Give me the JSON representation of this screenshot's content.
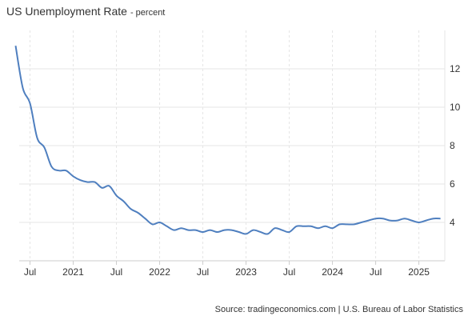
{
  "header": {
    "title": "US Unemployment Rate",
    "subtitle": "- percent"
  },
  "source": "Source: tradingeconomics.com | U.S. Bureau of Labor Statistics",
  "colors": {
    "line": "#4f7fbf",
    "grid": "#e5e5e5",
    "text": "#333333"
  },
  "chart_data": {
    "type": "line",
    "title": "US Unemployment Rate",
    "subtitle": "percent",
    "xlabel": "",
    "ylabel": "",
    "ylim": [
      2,
      14
    ],
    "grid": true,
    "y_ticks": [
      4,
      6,
      8,
      10,
      12
    ],
    "y_axis_position": "right",
    "x_ticks": [
      {
        "label": "Jul",
        "date": "2020-07"
      },
      {
        "label": "2021",
        "date": "2021-01"
      },
      {
        "label": "Jul",
        "date": "2021-07"
      },
      {
        "label": "2022",
        "date": "2022-01"
      },
      {
        "label": "Jul",
        "date": "2022-07"
      },
      {
        "label": "2023",
        "date": "2023-01"
      },
      {
        "label": "Jul",
        "date": "2023-07"
      },
      {
        "label": "2024",
        "date": "2024-01"
      },
      {
        "label": "Jul",
        "date": "2024-07"
      },
      {
        "label": "2025",
        "date": "2025-01"
      }
    ],
    "series": [
      {
        "name": "",
        "x": [
          "2020-05",
          "2020-06",
          "2020-07",
          "2020-08",
          "2020-09",
          "2020-10",
          "2020-11",
          "2020-12",
          "2021-01",
          "2021-02",
          "2021-03",
          "2021-04",
          "2021-05",
          "2021-06",
          "2021-07",
          "2021-08",
          "2021-09",
          "2021-10",
          "2021-11",
          "2021-12",
          "2022-01",
          "2022-02",
          "2022-03",
          "2022-04",
          "2022-05",
          "2022-06",
          "2022-07",
          "2022-08",
          "2022-09",
          "2022-10",
          "2022-11",
          "2022-12",
          "2023-01",
          "2023-02",
          "2023-03",
          "2023-04",
          "2023-05",
          "2023-06",
          "2023-07",
          "2023-08",
          "2023-09",
          "2023-10",
          "2023-11",
          "2023-12",
          "2024-01",
          "2024-02",
          "2024-03",
          "2024-04",
          "2024-05",
          "2024-06",
          "2024-07",
          "2024-08",
          "2024-09",
          "2024-10",
          "2024-11",
          "2024-12",
          "2025-01",
          "2025-02",
          "2025-03",
          "2025-04"
        ],
        "values": [
          13.2,
          11.0,
          10.2,
          8.4,
          7.9,
          6.9,
          6.7,
          6.7,
          6.4,
          6.2,
          6.1,
          6.1,
          5.8,
          5.9,
          5.4,
          5.1,
          4.7,
          4.5,
          4.2,
          3.9,
          4.0,
          3.8,
          3.6,
          3.7,
          3.6,
          3.6,
          3.5,
          3.6,
          3.5,
          3.6,
          3.6,
          3.5,
          3.4,
          3.6,
          3.5,
          3.4,
          3.7,
          3.6,
          3.5,
          3.8,
          3.8,
          3.8,
          3.7,
          3.8,
          3.7,
          3.9,
          3.9,
          3.9,
          4.0,
          4.1,
          4.2,
          4.2,
          4.1,
          4.1,
          4.2,
          4.1,
          4.0,
          4.1,
          4.2,
          4.2
        ]
      }
    ]
  }
}
